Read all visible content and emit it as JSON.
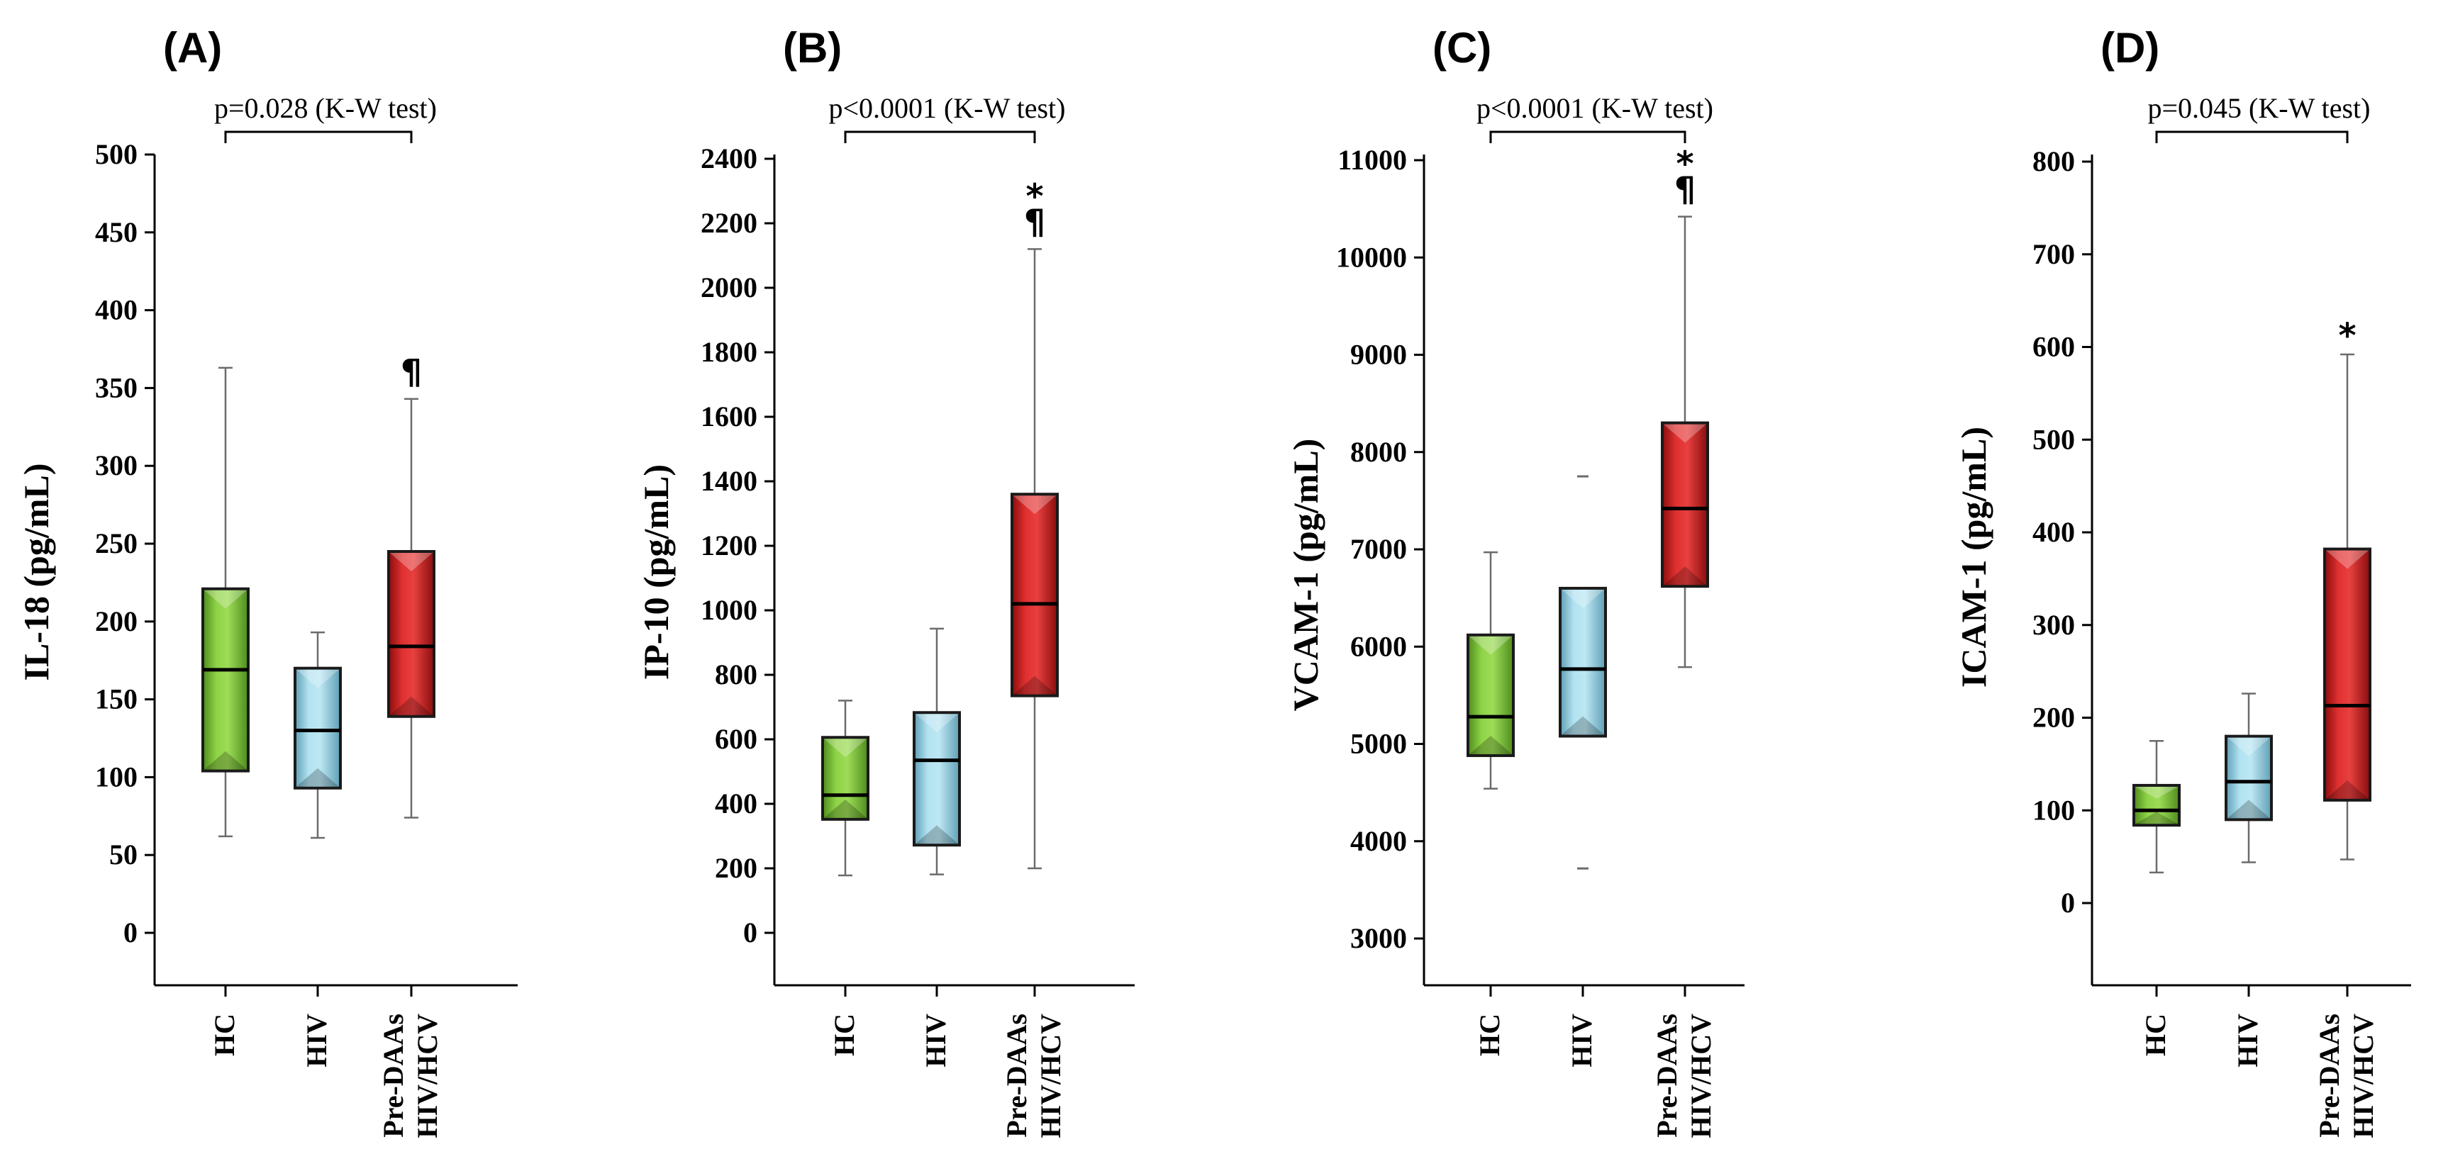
{
  "colors": {
    "hc": "#7cc33a",
    "hiv": "#9fd3e4",
    "pre": "#d42a2a",
    "box_stroke": "#1a1a1a",
    "axis": "#000000",
    "whisker": "#6b6b6b"
  },
  "categories": [
    "HC",
    "HIV",
    "Pre-DAAs HIV/HCV"
  ],
  "chart_data": [
    {
      "type": "box",
      "panel_label": "(A)",
      "pvalue": "p=0.028",
      "test": "(K-W test)",
      "ylabel": "IL-18 (pg/mL)",
      "ylim": [
        -33,
        500
      ],
      "yticks": [
        "0",
        "50",
        "100",
        "150",
        "200",
        "250",
        "300",
        "350",
        "400",
        "450",
        "500"
      ],
      "boxes": [
        {
          "category": "HC",
          "min": 62,
          "q1": 104,
          "median": 169,
          "q3": 221,
          "max": 363,
          "marks": "",
          "outliers": []
        },
        {
          "category": "HIV",
          "min": 61,
          "q1": 93,
          "median": 130,
          "q3": 170,
          "max": 193,
          "marks": "",
          "outliers": []
        },
        {
          "category": "Pre-DAAs HIV/HCV",
          "min": 74,
          "q1": 139,
          "median": 184,
          "q3": 245,
          "max": 343,
          "marks": "¶",
          "outliers": []
        }
      ]
    },
    {
      "type": "box",
      "panel_label": "(B)",
      "pvalue": "p<0.0001",
      "test": "(K-W test)",
      "ylabel": "IP-10 (pg/mL)",
      "ylim": [
        -170,
        2420
      ],
      "yticks": [
        "0",
        "200",
        "400",
        "600",
        "800",
        "1000",
        "1200",
        "1400",
        "1600",
        "1800",
        "2000",
        "2200",
        "2400"
      ],
      "boxes": [
        {
          "category": "HC",
          "min": 178,
          "q1": 352,
          "median": 427,
          "q3": 606,
          "max": 720,
          "marks": "",
          "outliers": []
        },
        {
          "category": "HIV",
          "min": 181,
          "q1": 272,
          "median": 535,
          "q3": 683,
          "max": 943,
          "marks": "",
          "outliers": []
        },
        {
          "category": "Pre-DAAs HIV/HCV",
          "min": 200,
          "q1": 735,
          "median": 1020,
          "q3": 1360,
          "max": 2120,
          "marks": "* ¶",
          "outliers": []
        }
      ]
    },
    {
      "type": "box",
      "panel_label": "(C)",
      "pvalue": "p<0.0001",
      "test": "(K-W test)",
      "ylabel": "VCAM-1 (pg/mL)",
      "ylim": [
        2500,
        11000
      ],
      "yticks": [
        "3000",
        "4000",
        "5000",
        "6000",
        "7000",
        "8000",
        "9000",
        "10000",
        "11000"
      ],
      "boxes": [
        {
          "category": "HC",
          "min": 4540,
          "q1": 4880,
          "median": 5280,
          "q3": 6120,
          "max": 6970,
          "marks": "",
          "outliers": []
        },
        {
          "category": "HIV",
          "min": 5080,
          "q1": 5080,
          "median": 5770,
          "q3": 6600,
          "max": 6600,
          "marks": "",
          "outliers": [
            3720,
            7750
          ]
        },
        {
          "category": "Pre-DAAs HIV/HCV",
          "min": 5790,
          "q1": 6620,
          "median": 7420,
          "q3": 8300,
          "max": 10420,
          "marks": "* ¶",
          "outliers": []
        }
      ]
    },
    {
      "type": "box",
      "panel_label": "(D)",
      "pvalue": "p=0.045",
      "test": "(K-W test)",
      "ylabel": "ICAM-1 (pg/mL)",
      "ylim": [
        -87,
        800
      ],
      "yticks": [
        "0",
        "100",
        "200",
        "300",
        "400",
        "500",
        "600",
        "700",
        "800"
      ],
      "boxes": [
        {
          "category": "HC",
          "min": 33,
          "q1": 84,
          "median": 100,
          "q3": 127,
          "max": 175,
          "marks": "",
          "outliers": []
        },
        {
          "category": "HIV",
          "min": 44,
          "q1": 90,
          "median": 131,
          "q3": 180,
          "max": 226,
          "marks": "",
          "outliers": []
        },
        {
          "category": "Pre-DAAs HIV/HCV",
          "min": 47,
          "q1": 111,
          "median": 213,
          "q3": 382,
          "max": 592,
          "marks": "*",
          "outliers": []
        }
      ]
    }
  ]
}
